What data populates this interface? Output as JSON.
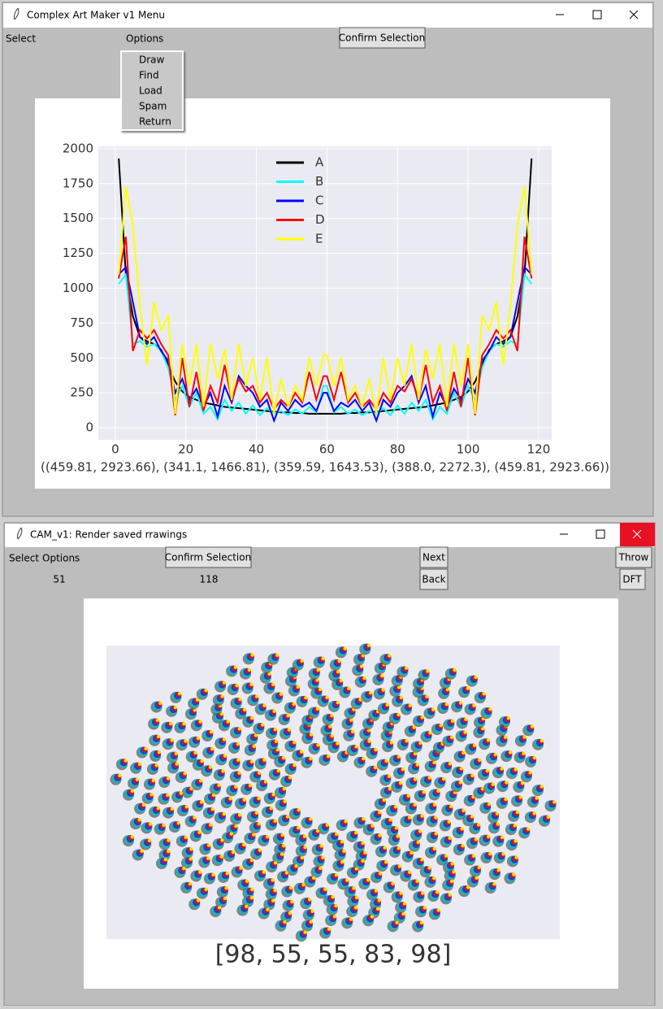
{
  "window1": {
    "title": "Complex Art Maker v1 Menu",
    "menu": [
      "Select",
      "Options"
    ],
    "button": "Confirm Selection",
    "dropdown": [
      "Draw",
      "Find",
      "Load",
      "Spam",
      "Return"
    ]
  },
  "chart_data": {
    "type": "line",
    "x": [
      1,
      3,
      5,
      7,
      9,
      11,
      13,
      15,
      17,
      19,
      21,
      23,
      25,
      27,
      29,
      31,
      33,
      35,
      37,
      39,
      41,
      43,
      45,
      47,
      49,
      51,
      53,
      55,
      57,
      59,
      60,
      62,
      64,
      66,
      68,
      70,
      72,
      74,
      76,
      78,
      80,
      82,
      84,
      86,
      88,
      90,
      92,
      94,
      96,
      98,
      100,
      102,
      104,
      106,
      108,
      110,
      112,
      114,
      116,
      118
    ],
    "series": [
      {
        "name": "A",
        "color": "#000000",
        "values": [
          1930,
          1100,
          800,
          650,
          620,
          600,
          560,
          450,
          330,
          260,
          220,
          200,
          180,
          170,
          160,
          150,
          145,
          140,
          135,
          130,
          125,
          120,
          115,
          110,
          110,
          105,
          105,
          100,
          100,
          100,
          100,
          100,
          100,
          105,
          105,
          110,
          110,
          115,
          120,
          125,
          130,
          135,
          140,
          145,
          150,
          160,
          170,
          180,
          200,
          220,
          260,
          330,
          450,
          560,
          600,
          620,
          650,
          800,
          1100,
          1930
        ]
      },
      {
        "name": "B",
        "color": "#00ffff",
        "values": [
          1030,
          1100,
          600,
          620,
          580,
          600,
          550,
          430,
          200,
          300,
          150,
          250,
          100,
          150,
          60,
          200,
          120,
          180,
          100,
          160,
          90,
          140,
          100,
          120,
          90,
          130,
          100,
          150,
          110,
          300,
          300,
          110,
          150,
          100,
          130,
          90,
          120,
          100,
          140,
          90,
          160,
          100,
          180,
          120,
          200,
          60,
          150,
          100,
          250,
          150,
          300,
          200,
          430,
          550,
          600,
          580,
          620,
          600,
          1100,
          1030
        ]
      },
      {
        "name": "C",
        "color": "#0000ff",
        "values": [
          1100,
          1150,
          900,
          650,
          600,
          650,
          550,
          480,
          250,
          350,
          200,
          280,
          150,
          250,
          80,
          300,
          180,
          370,
          300,
          250,
          150,
          200,
          50,
          180,
          120,
          200,
          150,
          180,
          120,
          250,
          250,
          120,
          180,
          150,
          200,
          120,
          180,
          50,
          200,
          150,
          250,
          300,
          370,
          180,
          300,
          80,
          250,
          150,
          280,
          200,
          350,
          250,
          480,
          550,
          650,
          600,
          650,
          900,
          1150,
          1100
        ]
      },
      {
        "name": "D",
        "color": "#ff0000",
        "values": [
          1070,
          1370,
          550,
          700,
          640,
          700,
          600,
          520,
          90,
          500,
          150,
          400,
          120,
          300,
          180,
          450,
          200,
          350,
          260,
          300,
          180,
          250,
          130,
          200,
          150,
          250,
          180,
          400,
          200,
          370,
          370,
          200,
          400,
          180,
          250,
          150,
          200,
          130,
          250,
          180,
          300,
          260,
          350,
          200,
          450,
          180,
          300,
          120,
          400,
          150,
          500,
          90,
          520,
          600,
          700,
          640,
          700,
          550,
          1370,
          1070
        ]
      },
      {
        "name": "E",
        "color": "#ffff00",
        "values": [
          1100,
          1730,
          1450,
          870,
          450,
          900,
          700,
          800,
          100,
          600,
          300,
          600,
          150,
          600,
          350,
          560,
          200,
          600,
          300,
          500,
          200,
          500,
          100,
          350,
          150,
          300,
          200,
          500,
          300,
          520,
          520,
          300,
          500,
          200,
          300,
          150,
          350,
          100,
          500,
          200,
          500,
          300,
          600,
          200,
          560,
          350,
          600,
          150,
          600,
          300,
          600,
          100,
          800,
          700,
          900,
          450,
          870,
          1450,
          1730,
          1100
        ]
      }
    ],
    "xlabel": "((459.81, 2923.66), (341.1, 1466.81), (359.59, 1643.53), (388.0, 2272.3), (459.81, 2923.66))",
    "xlim": [
      -4.8,
      123.7
    ],
    "xticks": [
      0,
      20,
      40,
      60,
      80,
      100,
      120
    ],
    "ylim": [
      -87,
      2017
    ],
    "yticks": [
      0,
      250,
      500,
      750,
      1000,
      1250,
      1500,
      1750,
      2000
    ],
    "grid": true,
    "legend": "upper center"
  },
  "window2": {
    "title": "CAM_v1: Render saved rrawings",
    "menu": [
      "Select",
      "Options"
    ],
    "button": "Confirm Selection",
    "next": "Next",
    "back": "Back",
    "throw": "Throw",
    "dft": "DFT",
    "field1": "51",
    "field2": "118",
    "caption": "[98, 55, 55, 83, 98]"
  }
}
